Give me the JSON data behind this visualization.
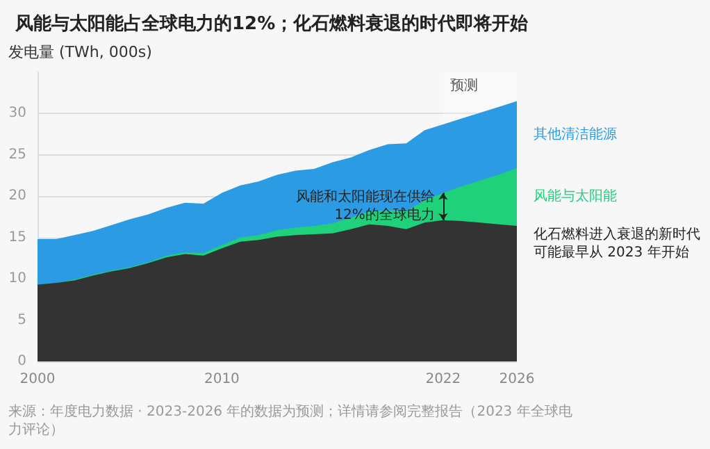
{
  "chart_data": {
    "type": "area",
    "title": "风能与太阳能占全球电力的12%；化石燃料衰退的时代即将开始",
    "ylabel": "发电量 (TWh, 000s)",
    "x": [
      2000,
      2001,
      2002,
      2003,
      2004,
      2005,
      2006,
      2007,
      2008,
      2009,
      2010,
      2011,
      2012,
      2013,
      2014,
      2015,
      2016,
      2017,
      2018,
      2019,
      2020,
      2021,
      2022,
      2023,
      2024,
      2025,
      2026
    ],
    "stacked": true,
    "series": [
      {
        "color": "#333333",
        "values": [
          9.3,
          9.5,
          9.8,
          10.4,
          10.9,
          11.3,
          11.9,
          12.6,
          13.0,
          12.8,
          13.7,
          14.5,
          14.7,
          15.1,
          15.3,
          15.4,
          15.5,
          16.0,
          16.6,
          16.4,
          16.0,
          16.8,
          17.1,
          17.0,
          16.8,
          16.6,
          16.4
        ]
      },
      {
        "name": "风能与太阳能",
        "color": "#1fd17a",
        "values": [
          0.0,
          0.0,
          0.1,
          0.1,
          0.1,
          0.1,
          0.1,
          0.2,
          0.2,
          0.3,
          0.4,
          0.5,
          0.6,
          0.8,
          0.9,
          1.0,
          1.2,
          1.4,
          1.6,
          1.9,
          2.2,
          2.7,
          3.3,
          4.2,
          5.1,
          6.0,
          7.0
        ]
      },
      {
        "name": "其他清洁能源",
        "color": "#2b9be3",
        "values": [
          5.5,
          5.3,
          5.4,
          5.3,
          5.5,
          5.8,
          5.8,
          5.8,
          6.0,
          6.0,
          6.3,
          6.3,
          6.5,
          6.7,
          6.9,
          6.9,
          7.4,
          7.3,
          7.4,
          8.0,
          8.2,
          8.5,
          8.3,
          8.2,
          8.2,
          8.2,
          8.1
        ]
      }
    ],
    "xlim": [
      2000,
      2026
    ],
    "xticks": [
      2000,
      2010,
      2022,
      2026
    ],
    "ylim": [
      0,
      35
    ],
    "yticks": [
      0,
      5,
      10,
      15,
      20,
      25,
      30
    ],
    "grid": "y",
    "legend": false,
    "bands": [
      {
        "axis": "x",
        "from": 2022,
        "to": 2026,
        "label": "预测",
        "color": "#ffffff"
      }
    ],
    "annotations": [
      {
        "text": "风能和太阳能现在供给12%的全球电力",
        "x": 2022,
        "y": 18.8
      },
      {
        "text": "化石燃料进入衰退的新时代可能最早从 2023 年开始",
        "x": 2026,
        "y": 16.4
      },
      "来源：年度电力数据 · 2023-2026 年的数据为预测；详情请参阅完整报告（2023 年全球电力评论）"
    ]
  }
}
